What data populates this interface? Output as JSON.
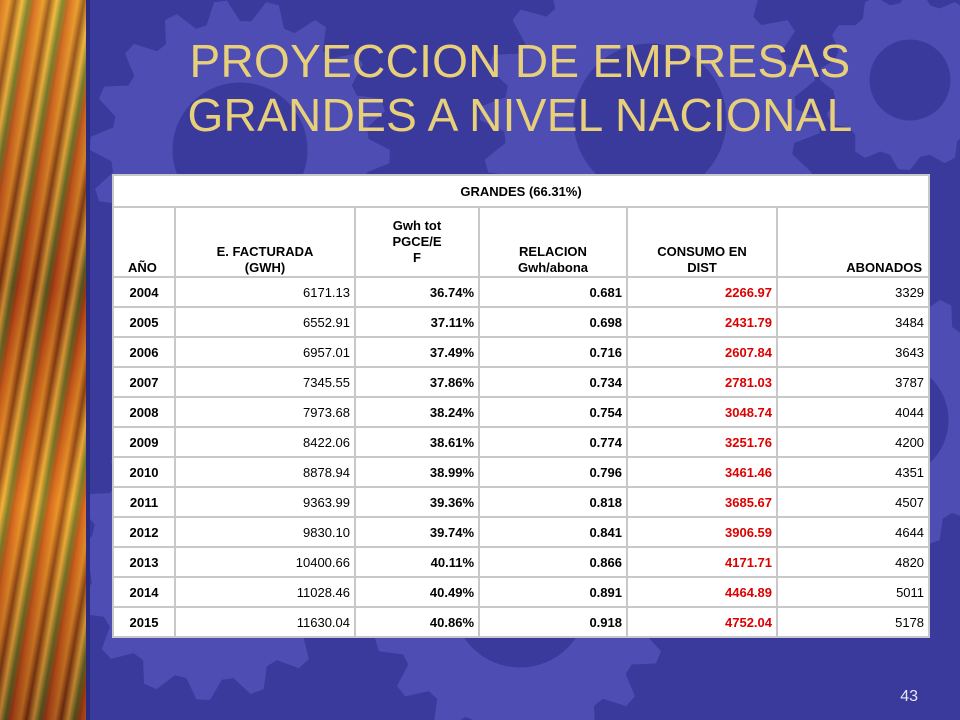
{
  "slide": {
    "title_line1": "PROYECCION DE EMPRESAS",
    "title_line2": "GRANDES A NIVEL NACIONAL",
    "page_number": "43"
  },
  "table": {
    "group_header": "GRANDES (66.31%)",
    "columns": [
      "AÑO",
      "E. FACTURADA\n(GWH)",
      "Gwh tot\nPGCE/E\nF",
      "RELACION\nGwh/abona",
      "CONSUMO EN\nDIST",
      "ABONADOS"
    ],
    "rows": [
      {
        "year": "2004",
        "fact": "6171.13",
        "pgce": "36.74%",
        "rel": "0.681",
        "cons": "2266.97",
        "abo": "3329"
      },
      {
        "year": "2005",
        "fact": "6552.91",
        "pgce": "37.11%",
        "rel": "0.698",
        "cons": "2431.79",
        "abo": "3484"
      },
      {
        "year": "2006",
        "fact": "6957.01",
        "pgce": "37.49%",
        "rel": "0.716",
        "cons": "2607.84",
        "abo": "3643"
      },
      {
        "year": "2007",
        "fact": "7345.55",
        "pgce": "37.86%",
        "rel": "0.734",
        "cons": "2781.03",
        "abo": "3787"
      },
      {
        "year": "2008",
        "fact": "7973.68",
        "pgce": "38.24%",
        "rel": "0.754",
        "cons": "3048.74",
        "abo": "4044"
      },
      {
        "year": "2009",
        "fact": "8422.06",
        "pgce": "38.61%",
        "rel": "0.774",
        "cons": "3251.76",
        "abo": "4200"
      },
      {
        "year": "2010",
        "fact": "8878.94",
        "pgce": "38.99%",
        "rel": "0.796",
        "cons": "3461.46",
        "abo": "4351"
      },
      {
        "year": "2011",
        "fact": "9363.99",
        "pgce": "39.36%",
        "rel": "0.818",
        "cons": "3685.67",
        "abo": "4507"
      },
      {
        "year": "2012",
        "fact": "9830.10",
        "pgce": "39.74%",
        "rel": "0.841",
        "cons": "3906.59",
        "abo": "4644"
      },
      {
        "year": "2013",
        "fact": "10400.66",
        "pgce": "40.11%",
        "rel": "0.866",
        "cons": "4171.71",
        "abo": "4820"
      },
      {
        "year": "2014",
        "fact": "11028.46",
        "pgce": "40.49%",
        "rel": "0.891",
        "cons": "4464.89",
        "abo": "5011"
      },
      {
        "year": "2015",
        "fact": "11630.04",
        "pgce": "40.86%",
        "rel": "0.918",
        "cons": "4752.04",
        "abo": "5178"
      }
    ]
  },
  "colors": {
    "background": "#3a3a9c",
    "gear": "#4d4db4",
    "title": "#e8cf7a",
    "consumo_text": "#dc0000"
  },
  "icons": {
    "decoration": "gear-icon",
    "side_art": "leaves-texture"
  }
}
